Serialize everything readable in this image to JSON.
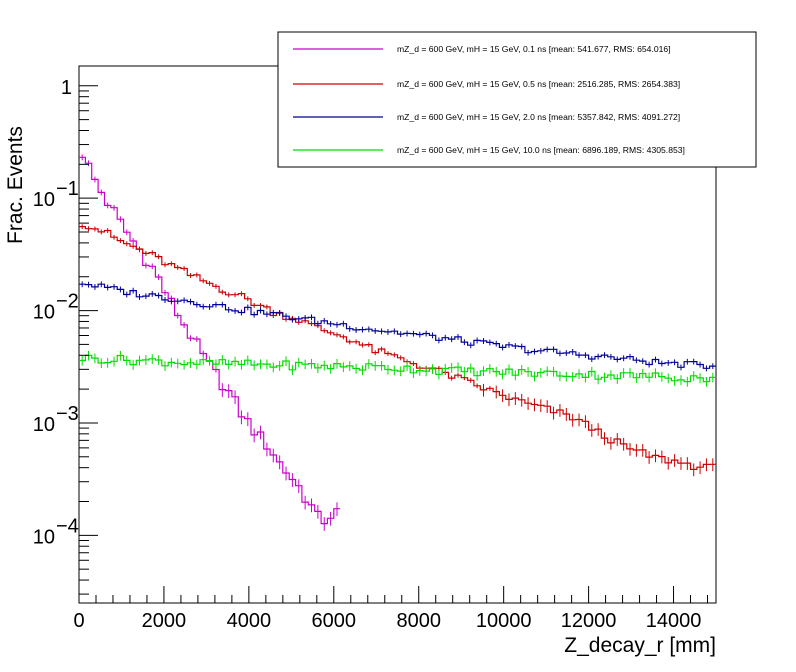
{
  "chart_data": {
    "type": "line",
    "style": "histogram-step-with-error-bars",
    "title": "",
    "xlabel": "Z_decay_r [mm]",
    "ylabel": "Frac. Events",
    "xlim": [
      0,
      15000
    ],
    "ylim": [
      2.5e-05,
      1.5
    ],
    "yscale": "log",
    "grid": false,
    "legend_position": "top-right",
    "x_ticks": [
      {
        "value": 0,
        "label": "0"
      },
      {
        "value": 2000,
        "label": "2000"
      },
      {
        "value": 4000,
        "label": "4000"
      },
      {
        "value": 6000,
        "label": "6000"
      },
      {
        "value": 8000,
        "label": "8000"
      },
      {
        "value": 10000,
        "label": "10000"
      },
      {
        "value": 12000,
        "label": "12000"
      },
      {
        "value": 14000,
        "label": "14000"
      }
    ],
    "y_ticks": [
      {
        "value": 0.0001,
        "base": "10",
        "exp": "−4"
      },
      {
        "value": 0.001,
        "base": "10",
        "exp": "−3"
      },
      {
        "value": 0.01,
        "base": "10",
        "exp": "−2"
      },
      {
        "value": 0.1,
        "base": "10",
        "exp": "−1"
      },
      {
        "value": 1,
        "base": "1",
        "exp": ""
      }
    ],
    "bin_width": 150,
    "series": [
      {
        "name": "mZ_d = 600 GeV, mH = 15 GeV, 0.1 ns [mean: 541.677, RMS: 654.016]",
        "color": "#cc00cc",
        "knots": [
          [
            0,
            0.28
          ],
          [
            150,
            0.23
          ],
          [
            300,
            0.16
          ],
          [
            450,
            0.13
          ],
          [
            600,
            0.1
          ],
          [
            750,
            0.085
          ],
          [
            900,
            0.067
          ],
          [
            1050,
            0.055
          ],
          [
            1200,
            0.045
          ],
          [
            1500,
            0.032
          ],
          [
            1800,
            0.022
          ],
          [
            2100,
            0.013
          ],
          [
            2400,
            0.0085
          ],
          [
            2700,
            0.0055
          ],
          [
            3000,
            0.0035
          ],
          [
            3300,
            0.0025
          ],
          [
            3600,
            0.0017
          ],
          [
            3900,
            0.0011
          ],
          [
            4200,
            0.0008
          ],
          [
            4500,
            0.0006
          ],
          [
            4800,
            0.0004
          ],
          [
            5100,
            0.0003
          ],
          [
            5400,
            0.0002
          ],
          [
            5700,
            0.00013
          ],
          [
            6000,
            0.00016
          ]
        ]
      },
      {
        "name": "mZ_d = 600 GeV, mH = 15 GeV, 0.5 ns [mean: 2516.285, RMS: 2654.383]",
        "color": "#cc0000",
        "knots": [
          [
            0,
            0.062
          ],
          [
            300,
            0.056
          ],
          [
            600,
            0.05
          ],
          [
            1050,
            0.04
          ],
          [
            1500,
            0.034
          ],
          [
            2100,
            0.026
          ],
          [
            2700,
            0.02
          ],
          [
            3300,
            0.016
          ],
          [
            3900,
            0.013
          ],
          [
            4500,
            0.01
          ],
          [
            5100,
            0.0085
          ],
          [
            5700,
            0.0068
          ],
          [
            6300,
            0.0058
          ],
          [
            6900,
            0.0045
          ],
          [
            7500,
            0.0038
          ],
          [
            8100,
            0.0032
          ],
          [
            8700,
            0.0027
          ],
          [
            9300,
            0.0022
          ],
          [
            9900,
            0.0018
          ],
          [
            10500,
            0.0015
          ],
          [
            11100,
            0.0013
          ],
          [
            11700,
            0.0011
          ],
          [
            12300,
            0.0008
          ],
          [
            12900,
            0.0006
          ],
          [
            13500,
            0.0005
          ],
          [
            14100,
            0.00045
          ],
          [
            14700,
            0.0004
          ],
          [
            15000,
            0.0004
          ]
        ]
      },
      {
        "name": "mZ_d = 600 GeV, mH = 15 GeV, 2.0 ns [mean: 5357.842, RMS: 4091.272]",
        "color": "#000099",
        "knots": [
          [
            0,
            0.018
          ],
          [
            600,
            0.016
          ],
          [
            1200,
            0.0145
          ],
          [
            1800,
            0.0135
          ],
          [
            2400,
            0.0125
          ],
          [
            3000,
            0.0115
          ],
          [
            3600,
            0.0105
          ],
          [
            4200,
            0.0097
          ],
          [
            4800,
            0.009
          ],
          [
            5400,
            0.0083
          ],
          [
            6000,
            0.0077
          ],
          [
            6600,
            0.0071
          ],
          [
            7200,
            0.0066
          ],
          [
            7800,
            0.0062
          ],
          [
            8400,
            0.0058
          ],
          [
            9000,
            0.0054
          ],
          [
            9600,
            0.005
          ],
          [
            10200,
            0.0047
          ],
          [
            10800,
            0.0044
          ],
          [
            11400,
            0.0042
          ],
          [
            12000,
            0.004
          ],
          [
            12600,
            0.0038
          ],
          [
            13200,
            0.0036
          ],
          [
            13800,
            0.0034
          ],
          [
            14400,
            0.0033
          ],
          [
            15000,
            0.0032
          ]
        ]
      },
      {
        "name": "mZ_d = 600 GeV, mH = 15 GeV, 10.0 ns [mean: 6896.189, RMS: 4305.853]",
        "color": "#00dd00",
        "knots": [
          [
            0,
            0.0038
          ],
          [
            1500,
            0.0036
          ],
          [
            3000,
            0.0034
          ],
          [
            4500,
            0.0033
          ],
          [
            6000,
            0.0032
          ],
          [
            7500,
            0.0031
          ],
          [
            9000,
            0.0029
          ],
          [
            10500,
            0.0028
          ],
          [
            12000,
            0.0027
          ],
          [
            13500,
            0.0026
          ],
          [
            15000,
            0.0025
          ]
        ]
      }
    ]
  }
}
